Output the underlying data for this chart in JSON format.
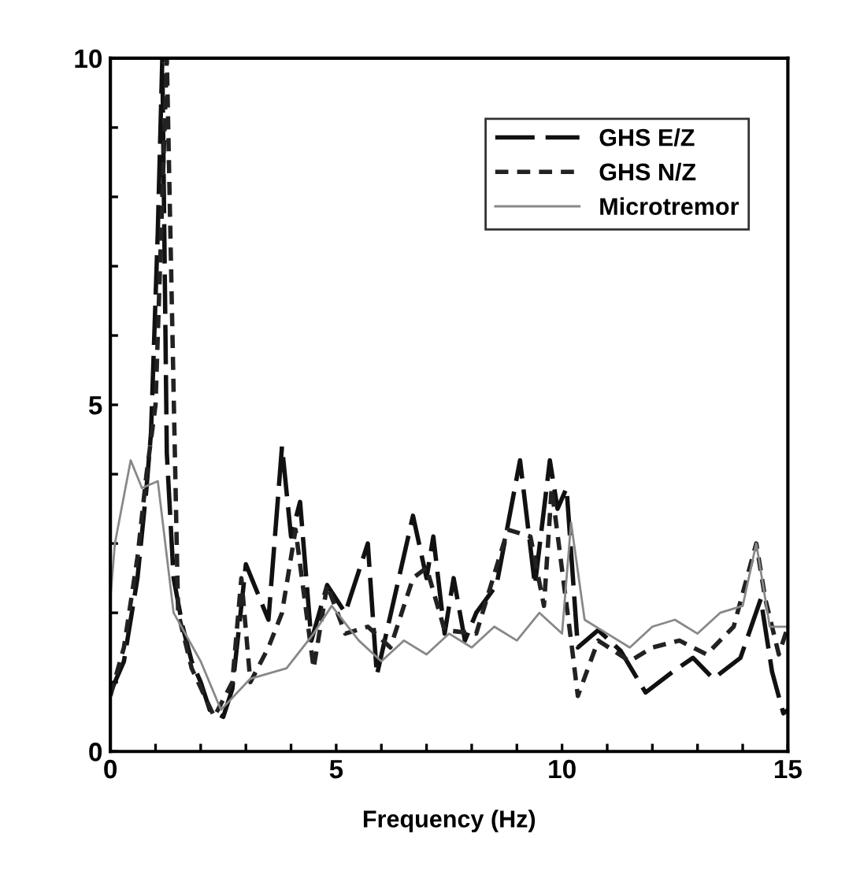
{
  "chart_data": {
    "type": "line",
    "xlabel": "Frequency (Hz)",
    "xlim": [
      0,
      15
    ],
    "ylim": [
      0,
      10
    ],
    "xticks": [
      0,
      {
        "value": 1,
        "label": null
      },
      {
        "value": 2,
        "label": null
      },
      {
        "value": 3,
        "label": null
      },
      {
        "value": 4,
        "label": null
      },
      5,
      {
        "value": 6,
        "label": null
      },
      {
        "value": 7,
        "label": null
      },
      {
        "value": 8,
        "label": null
      },
      {
        "value": 9,
        "label": null
      },
      10,
      {
        "value": 11,
        "label": null
      },
      {
        "value": 12,
        "label": null
      },
      {
        "value": 13,
        "label": null
      },
      {
        "value": 14,
        "label": null
      },
      15
    ],
    "yticks": [
      0,
      {
        "value": 1,
        "label": null
      },
      {
        "value": 2,
        "label": null
      },
      {
        "value": 3,
        "label": null
      },
      {
        "value": 4,
        "label": null
      },
      5,
      {
        "value": 6,
        "label": null
      },
      {
        "value": 7,
        "label": null
      },
      {
        "value": 8,
        "label": null
      },
      {
        "value": 9,
        "label": null
      },
      10
    ],
    "grid": false,
    "legend": "top right",
    "marker": "none",
    "series": [
      {
        "name": "GHS E/Z",
        "color": "#111111",
        "line_style": "dashed",
        "x": [
          0,
          0.3,
          0.6,
          0.8,
          0.9,
          1.05,
          1.15,
          1.25,
          1.4,
          1.6,
          1.8,
          2.0,
          2.2,
          2.5,
          2.7,
          3.0,
          3.5,
          3.8,
          4.0,
          4.2,
          4.45,
          4.8,
          5.2,
          5.7,
          5.9,
          6.7,
          7.0,
          7.15,
          7.4,
          7.6,
          7.85,
          8.1,
          8.55,
          9.07,
          9.4,
          9.73,
          9.9,
          10.1,
          10.35,
          10.8,
          11.3,
          11.85,
          12.45,
          12.9,
          13.35,
          13.95,
          14.4,
          14.65,
          14.9,
          15
        ],
        "values": [
          0.85,
          1.3,
          2.5,
          3.8,
          4.6,
          7.5,
          10,
          4.3,
          2.5,
          1.8,
          1.3,
          1.0,
          0.6,
          0.5,
          0.9,
          2.7,
          1.9,
          4.4,
          3.1,
          3.6,
          1.6,
          2.4,
          2.0,
          3.0,
          1.1,
          3.4,
          2.5,
          3.1,
          1.7,
          2.5,
          1.6,
          2.0,
          2.4,
          4.2,
          2.4,
          4.2,
          3.5,
          3.8,
          1.5,
          1.75,
          1.45,
          0.85,
          1.15,
          1.35,
          1.05,
          1.35,
          2.2,
          1.15,
          0.55,
          0.6
        ]
      },
      {
        "name": "GHS N/Z",
        "color": "#222222",
        "line_style": "dotted",
        "x": [
          0,
          0.3,
          0.6,
          0.8,
          1.0,
          1.25,
          1.5,
          1.8,
          2.3,
          2.7,
          2.9,
          3.1,
          3.5,
          3.8,
          4.1,
          4.5,
          4.8,
          5.2,
          5.7,
          6.2,
          6.7,
          7.0,
          7.4,
          8.1,
          8.8,
          9.3,
          9.6,
          9.77,
          10.2,
          10.35,
          10.8,
          11.5,
          12.0,
          12.6,
          13.2,
          13.8,
          14.3,
          14.5,
          14.8,
          15
        ],
        "values": [
          0.8,
          1.5,
          2.8,
          4.0,
          5.0,
          10,
          2.0,
          1.2,
          0.5,
          1.0,
          2.5,
          1.0,
          1.5,
          2.0,
          3.2,
          1.2,
          2.4,
          1.7,
          1.8,
          1.5,
          2.5,
          2.65,
          1.75,
          1.7,
          3.2,
          3.1,
          2.1,
          3.8,
          1.6,
          0.8,
          1.6,
          1.3,
          1.5,
          1.6,
          1.4,
          1.8,
          3.0,
          2.2,
          1.4,
          1.8
        ]
      },
      {
        "name": "Microtremor",
        "color": "#888888",
        "line_style": "solid",
        "x": [
          0,
          0.1,
          0.45,
          0.7,
          1.05,
          1.4,
          2.0,
          2.45,
          3.1,
          3.9,
          4.5,
          4.9,
          5.5,
          6.0,
          6.5,
          7.0,
          7.5,
          8.0,
          8.5,
          9.0,
          9.5,
          10.0,
          10.2,
          10.5,
          11.0,
          11.5,
          12.0,
          12.5,
          13.0,
          13.5,
          14.0,
          14.3,
          14.6,
          15
        ],
        "values": [
          2.2,
          3.0,
          4.2,
          3.8,
          3.9,
          2.0,
          1.3,
          0.6,
          1.05,
          1.2,
          1.7,
          2.1,
          1.6,
          1.3,
          1.6,
          1.4,
          1.7,
          1.5,
          1.8,
          1.6,
          2.0,
          1.7,
          3.3,
          1.9,
          1.7,
          1.5,
          1.8,
          1.9,
          1.7,
          2.0,
          2.1,
          3.0,
          1.8,
          1.8
        ]
      }
    ]
  }
}
